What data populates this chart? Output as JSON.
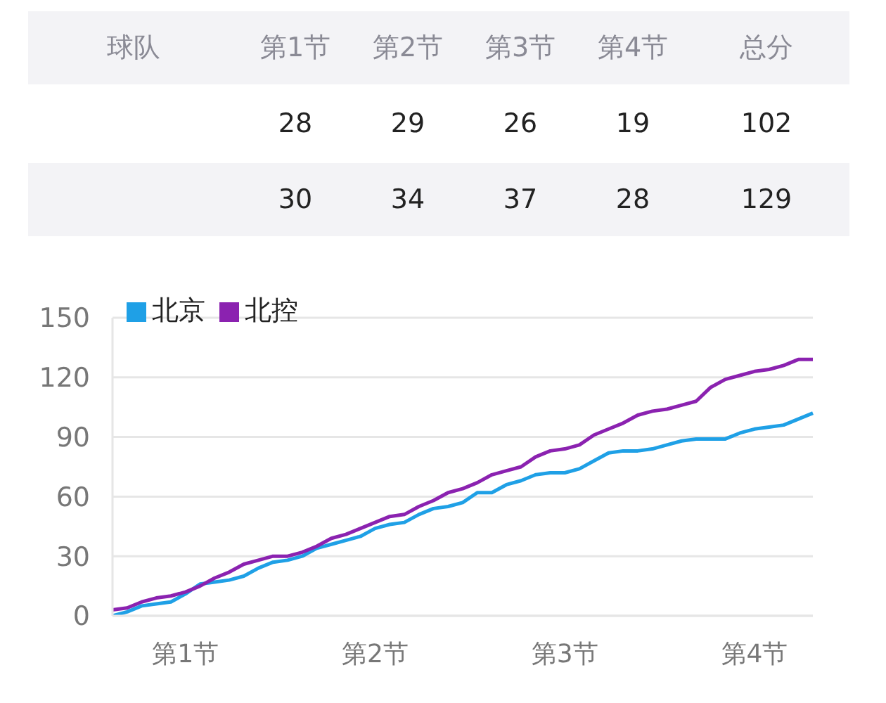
{
  "chart_data": [
    {
      "type": "other",
      "ylabel": "球队",
      "categories": [
        "第1节",
        "第2节",
        "第3节",
        "第4节",
        "总分"
      ],
      "series": [
        {
          "values": [
            28,
            29,
            26,
            19,
            102
          ]
        },
        {
          "values": [
            30,
            34,
            37,
            28,
            129
          ]
        }
      ],
      "data_labels": true
    },
    {
      "type": "line",
      "ylim": [
        0,
        150
      ],
      "yticks": [
        0,
        30,
        60,
        90,
        120,
        150
      ],
      "categories": [
        null,
        null,
        null,
        null,
        null,
        "第1节",
        null,
        null,
        null,
        null,
        null,
        null,
        null,
        null,
        null,
        null,
        null,
        null,
        "第2节",
        null,
        null,
        null,
        null,
        null,
        null,
        null,
        null,
        null,
        null,
        null,
        null,
        "第3节",
        null,
        null,
        null,
        null,
        null,
        null,
        null,
        null,
        null,
        null,
        null,
        null,
        "第4节",
        null,
        null,
        null,
        null
      ],
      "grid": "y",
      "legend": "top left",
      "marker": "none",
      "series": [
        {
          "name": "北京",
          "color": "#1fa0e6",
          "values": [
            0,
            2,
            5,
            6,
            7,
            11,
            16,
            17,
            18,
            20,
            24,
            27,
            28,
            30,
            34,
            36,
            38,
            40,
            44,
            46,
            47,
            51,
            54,
            55,
            57,
            62,
            62,
            66,
            68,
            71,
            72,
            72,
            74,
            78,
            82,
            83,
            83,
            84,
            86,
            88,
            89,
            89,
            89,
            92,
            94,
            95,
            96,
            99,
            102
          ]
        },
        {
          "name": "北控",
          "color": "#8b22b0",
          "values": [
            3,
            4,
            7,
            9,
            10,
            12,
            15,
            19,
            22,
            26,
            28,
            30,
            30,
            32,
            35,
            39,
            41,
            44,
            47,
            50,
            51,
            55,
            58,
            62,
            64,
            67,
            71,
            73,
            75,
            80,
            83,
            84,
            86,
            91,
            94,
            97,
            101,
            103,
            104,
            106,
            108,
            115,
            119,
            121,
            123,
            124,
            126,
            129,
            129
          ]
        }
      ]
    }
  ]
}
